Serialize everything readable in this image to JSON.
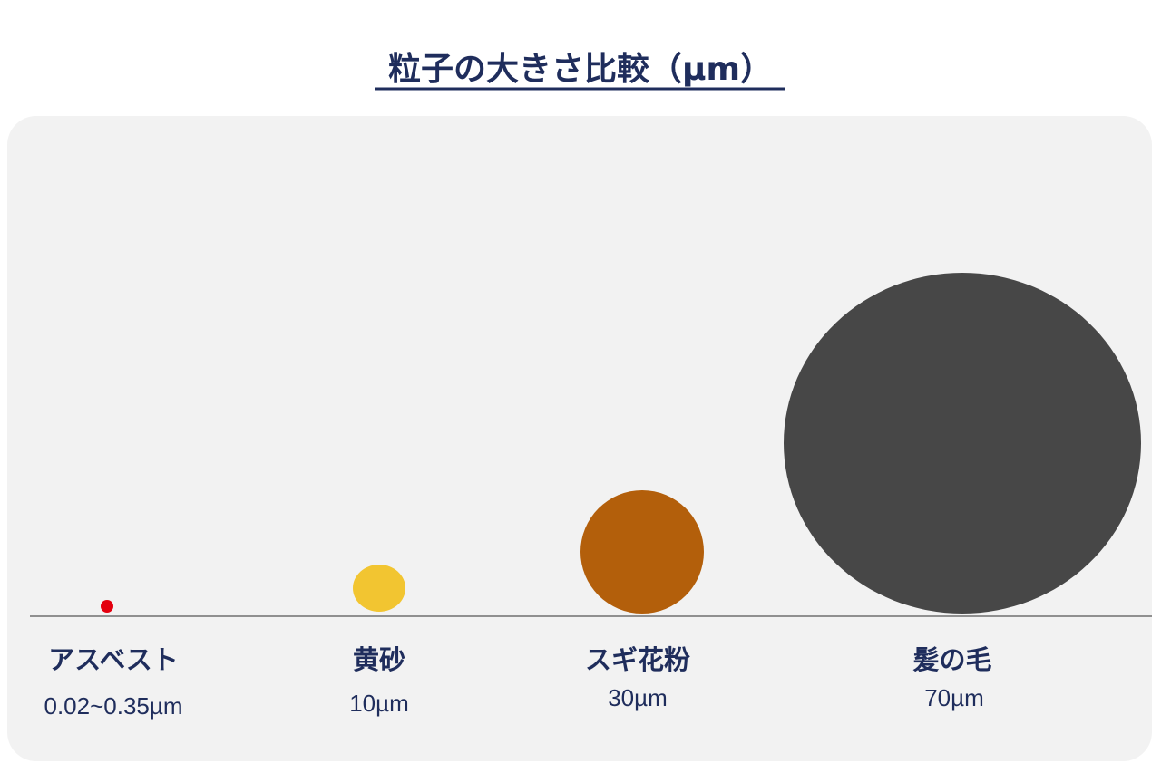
{
  "title": "粒子の大きさ比較（µm）",
  "items": [
    {
      "name": "アスベスト",
      "size": "0.02~0.35µm"
    },
    {
      "name": "黄砂",
      "size": "10µm"
    },
    {
      "name": "スギ花粉",
      "size": "30µm"
    },
    {
      "name": "髪の毛",
      "size": "70µm"
    }
  ]
}
